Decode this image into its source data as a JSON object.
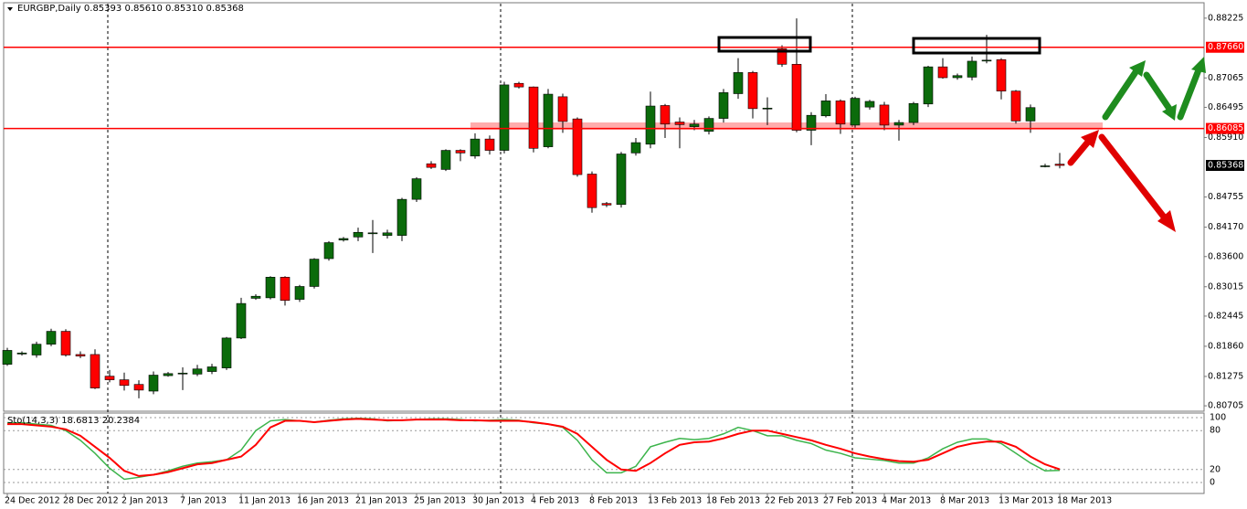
{
  "chart_data": [
    {
      "type": "candlestick",
      "title": "EURGBP,Daily",
      "categories": [
        "24 Dec 2012",
        null,
        null,
        null,
        "28 Dec 2012",
        null,
        null,
        null,
        "2 Jan 2013",
        null,
        null,
        null,
        "7 Jan 2013",
        null,
        null,
        null,
        "11 Jan 2013",
        null,
        null,
        null,
        "16 Jan 2013",
        null,
        null,
        null,
        "21 Jan 2013",
        null,
        null,
        null,
        "25 Jan 2013",
        null,
        null,
        null,
        "30 Jan 2013",
        null,
        null,
        null,
        "4 Feb 2013",
        null,
        null,
        null,
        "8 Feb 2013",
        null,
        null,
        null,
        "13 Feb 2013",
        null,
        null,
        null,
        "18 Feb 2013",
        null,
        null,
        null,
        "22 Feb 2013",
        null,
        null,
        null,
        "27 Feb 2013",
        null,
        null,
        null,
        "4 Mar 2013",
        null,
        null,
        null,
        "8 Mar 2013",
        null,
        null,
        null,
        "13 Mar 2013",
        null,
        null,
        null,
        "18 Mar 2013"
      ],
      "open": [
        0.8151,
        0.8171,
        0.8169,
        0.819,
        0.8215,
        0.817,
        0.817,
        0.8128,
        0.8121,
        0.8112,
        0.8099,
        0.8129,
        0.8133,
        0.8132,
        0.8137,
        0.8144,
        0.8202,
        0.8279,
        0.828,
        0.832,
        0.8277,
        0.8302,
        0.8356,
        0.8392,
        0.8398,
        0.8406,
        0.8401,
        0.8401,
        0.8471,
        0.854,
        0.8529,
        0.8566,
        0.8555,
        0.8588,
        0.8566,
        0.8696,
        0.8689,
        0.8573,
        0.867,
        0.8627,
        0.852,
        0.8463,
        0.8461,
        0.8561,
        0.8578,
        0.8653,
        0.8621,
        0.8612,
        0.8603,
        0.8628,
        0.8676,
        0.8717,
        0.8648,
        0.8763,
        0.8733,
        0.8605,
        0.8633,
        0.8662,
        0.8615,
        0.865,
        0.8654,
        0.8615,
        0.862,
        0.8656,
        0.8728,
        0.8707,
        0.8708,
        0.8741,
        0.8742,
        0.8681,
        0.8623,
        0.8536,
        0.85393
      ],
      "high": [
        0.8183,
        0.8176,
        0.8195,
        0.822,
        0.8219,
        0.8176,
        0.818,
        0.814,
        0.8135,
        0.812,
        0.8137,
        0.8136,
        0.8145,
        0.815,
        0.8152,
        0.8204,
        0.828,
        0.8287,
        0.8322,
        0.8322,
        0.8305,
        0.8357,
        0.839,
        0.8398,
        0.8416,
        0.8431,
        0.8412,
        0.8474,
        0.8514,
        0.8545,
        0.8568,
        0.8568,
        0.8599,
        0.8595,
        0.8699,
        0.8699,
        0.869,
        0.8685,
        0.8676,
        0.863,
        0.8525,
        0.8466,
        0.8563,
        0.859,
        0.868,
        0.8656,
        0.863,
        0.8625,
        0.8632,
        0.8685,
        0.8745,
        0.872,
        0.8669,
        0.877,
        0.8822,
        0.864,
        0.8675,
        0.8665,
        0.867,
        0.8664,
        0.866,
        0.8625,
        0.866,
        0.873,
        0.8745,
        0.8715,
        0.8748,
        0.879,
        0.8745,
        0.8683,
        0.8655,
        0.854,
        0.8561
      ],
      "low": [
        0.8148,
        0.8168,
        0.8164,
        0.8186,
        0.8166,
        0.8163,
        0.8103,
        0.8116,
        0.81,
        0.8085,
        0.8093,
        0.8127,
        0.8101,
        0.8128,
        0.8132,
        0.814,
        0.82,
        0.8276,
        0.8277,
        0.8265,
        0.8272,
        0.8298,
        0.8352,
        0.8389,
        0.839,
        0.8367,
        0.8395,
        0.839,
        0.8466,
        0.853,
        0.8526,
        0.8545,
        0.855,
        0.8558,
        0.856,
        0.8686,
        0.8562,
        0.857,
        0.86,
        0.8515,
        0.8445,
        0.8456,
        0.8455,
        0.8556,
        0.857,
        0.859,
        0.857,
        0.8605,
        0.8597,
        0.862,
        0.8666,
        0.8628,
        0.8615,
        0.8728,
        0.8601,
        0.8576,
        0.863,
        0.8598,
        0.861,
        0.8645,
        0.8605,
        0.8585,
        0.8615,
        0.865,
        0.8705,
        0.8703,
        0.8702,
        0.8735,
        0.8665,
        0.8618,
        0.86,
        0.8533,
        0.8531
      ],
      "close": [
        0.8178,
        0.8173,
        0.819,
        0.8215,
        0.8169,
        0.8167,
        0.8105,
        0.8121,
        0.811,
        0.8101,
        0.813,
        0.8133,
        0.8134,
        0.8142,
        0.8146,
        0.8202,
        0.8269,
        0.8283,
        0.832,
        0.8275,
        0.8302,
        0.8355,
        0.8387,
        0.8395,
        0.8407,
        0.8406,
        0.8406,
        0.8471,
        0.8511,
        0.8533,
        0.8566,
        0.8561,
        0.8588,
        0.8566,
        0.8693,
        0.8689,
        0.857,
        0.8675,
        0.8622,
        0.8519,
        0.8455,
        0.846,
        0.8559,
        0.8581,
        0.8652,
        0.8617,
        0.8616,
        0.8617,
        0.8628,
        0.8678,
        0.8717,
        0.8647,
        0.8648,
        0.8733,
        0.8605,
        0.8634,
        0.8662,
        0.8617,
        0.8667,
        0.8661,
        0.8615,
        0.862,
        0.8657,
        0.8728,
        0.8707,
        0.8711,
        0.8739,
        0.8741,
        0.8681,
        0.8623,
        0.8649,
        0.8536,
        0.85368
      ],
      "value_labels": {
        "open": "0.85393",
        "high": "0.85610",
        "low": "0.85310",
        "close": "0.85368"
      },
      "up_color": "#0b6b0b",
      "down_color": "#ff0000",
      "ylim": [
        0.806,
        0.88506
      ],
      "yticks": [
        0.88225,
        0.87065,
        0.86495,
        {
          "value": 0.8591,
          "label": "0.85910"
        },
        0.84755,
        {
          "value": 0.8417,
          "label": "0.84170"
        },
        {
          "value": 0.836,
          "label": "0.83600"
        },
        0.83015,
        0.82445,
        {
          "value": 0.8186,
          "label": "0.81860"
        },
        0.81275,
        0.80705
      ],
      "levels": [
        {
          "value": 0.8766,
          "label": "0.87660",
          "color": "#ff0000"
        },
        {
          "value": 0.86085,
          "label": "0.86085",
          "color": "#ff0000"
        }
      ]
    },
    {
      "type": "line",
      "title": "Sto(14,3,3)",
      "ylim": [
        0,
        100
      ],
      "yticks": [
        100,
        80,
        20,
        0
      ],
      "series": [
        {
          "color": "#3cb44b",
          "values": [
            92,
            92,
            90,
            88,
            80,
            65,
            45,
            22,
            5,
            8,
            12,
            18,
            25,
            30,
            32,
            35,
            50,
            80,
            95,
            97,
            95,
            93,
            96,
            98,
            99,
            98,
            95,
            96,
            97,
            98,
            98,
            97,
            95,
            96,
            97,
            96,
            92,
            90,
            85,
            65,
            35,
            15,
            15,
            25,
            55,
            62,
            68,
            66,
            68,
            75,
            85,
            80,
            72,
            72,
            65,
            60,
            50,
            45,
            38,
            36,
            34,
            30,
            30,
            38,
            52,
            62,
            67,
            67,
            60,
            45,
            30,
            18,
            18.6813
          ]
        },
        {
          "color": "#ff0000",
          "values": [
            90,
            90,
            88,
            86,
            82,
            72,
            55,
            38,
            18,
            10,
            12,
            16,
            22,
            28,
            30,
            35,
            40,
            58,
            85,
            95,
            95,
            93,
            95,
            97,
            98,
            97,
            96,
            96,
            97,
            97,
            97,
            96,
            96,
            95,
            95,
            95,
            93,
            90,
            86,
            75,
            55,
            35,
            20,
            18,
            30,
            45,
            58,
            62,
            63,
            68,
            75,
            80,
            80,
            75,
            70,
            65,
            58,
            52,
            45,
            40,
            36,
            33,
            32,
            35,
            45,
            55,
            60,
            63,
            63,
            55,
            40,
            28,
            20.2384
          ]
        }
      ]
    }
  ]
}
